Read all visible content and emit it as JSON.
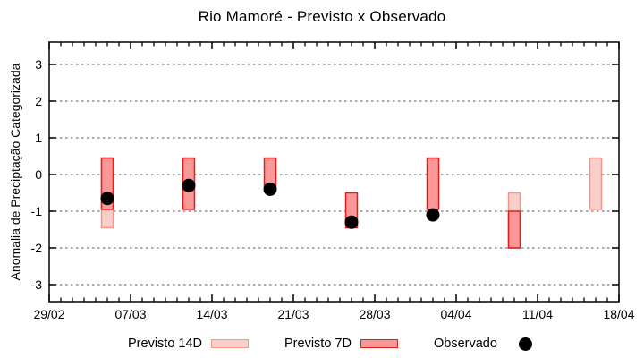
{
  "window": {
    "background": "#ffffff"
  },
  "chart_data": {
    "type": "range-bar+scatter",
    "title": "Rio Mamoré - Previsto x Observado",
    "ylabel": "Anomalia de Preciptação Categorizada",
    "ylim": [
      -3.46,
      3.61
    ],
    "yticks": [
      3,
      2,
      1,
      0,
      -1,
      -2,
      -3
    ],
    "grid": "horizontal-dotted",
    "x_axis": {
      "tick_labels": [
        "29/02",
        "07/03",
        "14/03",
        "21/03",
        "28/03",
        "04/04",
        "11/04",
        "18/04"
      ],
      "tick_days": [
        0,
        7,
        14,
        21,
        28,
        35,
        42,
        49
      ],
      "total_days": 49,
      "minor_tick_every_days": 1,
      "major_tick_every_days": 7
    },
    "series": [
      {
        "name": "Previsto 14D",
        "type": "range-bar",
        "fill": "#fbcfc9",
        "border": "#f2968a",
        "points": [
          {
            "date": "05/03",
            "day": 5,
            "low": -1.45,
            "high": 0.45
          },
          {
            "date": "09/04",
            "day": 40,
            "low": -2.0,
            "high": -0.5
          },
          {
            "date": "16/04",
            "day": 47,
            "low": -0.95,
            "high": 0.45
          }
        ]
      },
      {
        "name": "Previsto 7D",
        "type": "range-bar",
        "fill": "#fa9898",
        "border": "#e31b1b",
        "points": [
          {
            "date": "05/03",
            "day": 5,
            "low": -0.95,
            "high": 0.45
          },
          {
            "date": "12/03",
            "day": 12,
            "low": -0.95,
            "high": 0.45
          },
          {
            "date": "19/03",
            "day": 19,
            "low": -0.35,
            "high": 0.45
          },
          {
            "date": "26/03",
            "day": 26,
            "low": -1.45,
            "high": -0.5
          },
          {
            "date": "02/04",
            "day": 33,
            "low": -0.95,
            "high": 0.45
          },
          {
            "date": "09/04",
            "day": 40,
            "low": -2.0,
            "high": -1.0
          }
        ]
      },
      {
        "name": "Observado",
        "type": "scatter",
        "color": "#000000",
        "points": [
          {
            "date": "05/03",
            "day": 5,
            "value": -0.65
          },
          {
            "date": "12/03",
            "day": 12,
            "value": -0.3
          },
          {
            "date": "19/03",
            "day": 19,
            "value": -0.4
          },
          {
            "date": "26/03",
            "day": 26,
            "value": -1.3
          },
          {
            "date": "02/04",
            "day": 33,
            "value": -1.1
          }
        ]
      }
    ],
    "legend": {
      "position": "bottom-center",
      "items": [
        {
          "label": "Previsto 14D",
          "swatch": "range-bar-14d"
        },
        {
          "label": "Previsto 7D",
          "swatch": "range-bar-7d"
        },
        {
          "label": "Observado",
          "swatch": "dot"
        }
      ]
    },
    "colors": {
      "grid": "#8f8f8f",
      "axis": "#000000",
      "background": "#ffffff"
    }
  }
}
